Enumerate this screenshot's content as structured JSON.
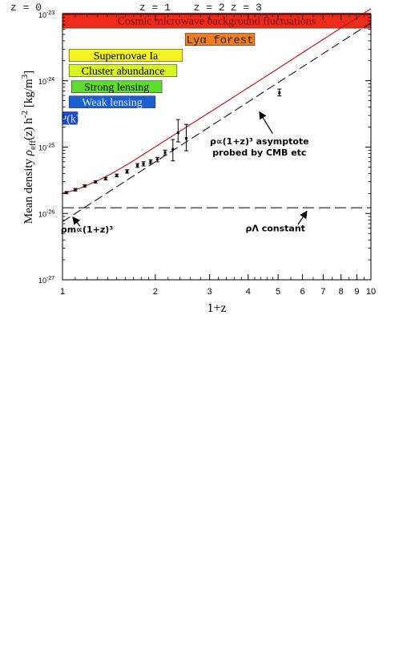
{
  "chart_data": {
    "type": "line",
    "xlabel": "1+z",
    "ylabel_parts": {
      "prefix": "Mean density ",
      "rho": "ρ",
      "sub": "eff",
      "mid": "(z) h",
      "sup": "-2",
      "units": "[kg/m",
      "units_sup": "3",
      "units_end": "]"
    },
    "x_scale": "log",
    "y_scale": "log",
    "xlim": [
      1,
      10
    ],
    "ylim": [
      1e-27,
      1e-23
    ],
    "x_ticks": [
      {
        "value": 1,
        "label": "1"
      },
      {
        "value": 2,
        "label": "2"
      },
      {
        "value": 3,
        "label": "3"
      },
      {
        "value": 4,
        "label": "4"
      },
      {
        "value": 5,
        "label": "5"
      },
      {
        "value": 6,
        "label": "6"
      },
      {
        "value": 7,
        "label": "7"
      },
      {
        "value": 8,
        "label": "8"
      },
      {
        "value": 9,
        "label": "9"
      },
      {
        "value": 10,
        "label": "10"
      }
    ],
    "y_ticks": [
      {
        "value": 1e-27,
        "base": "10",
        "exp": "-27"
      },
      {
        "value": 1e-26,
        "base": "10",
        "exp": "-26"
      },
      {
        "value": 1e-25,
        "base": "10",
        "exp": "-25"
      },
      {
        "value": 1e-24,
        "base": "10",
        "exp": "-24"
      },
      {
        "value": 1e-23,
        "base": "10",
        "exp": "-23"
      }
    ],
    "top_labels": [
      {
        "text": "z = 0",
        "value": 1
      },
      {
        "text": "z = 1",
        "value": 2
      },
      {
        "text": "z = 2",
        "value": 3
      },
      {
        "text": "z = 3",
        "value": 4
      }
    ],
    "series": [
      {
        "style": "solid-red",
        "x": [
          1.0,
          1.05,
          1.1,
          1.15,
          1.2,
          1.3,
          1.4,
          1.5,
          1.7,
          2.0,
          2.3,
          2.7,
          3.2,
          4.0,
          5.0,
          6.5,
          8.0,
          10.0
        ],
        "y": [
          2.03e-26,
          2.12e-26,
          2.26e-26,
          2.44e-26,
          2.65e-26,
          3.12e-26,
          3.71e-26,
          4.42e-26,
          6.25e-26,
          1.01e-25,
          1.53e-25,
          2.45e-25,
          4.05e-25,
          7.86e-25,
          1.53e-24,
          3.37e-24,
          6.26e-24,
          1.22e-23
        ]
      },
      {
        "style": "dashed-black",
        "x": [
          1.0,
          10.0
        ],
        "y": [
          7.5e-27,
          7.5e-24
        ]
      },
      {
        "style": "dashed-black",
        "x": [
          1.0,
          10.0
        ],
        "y": [
          1.22e-26,
          1.22e-26
        ]
      }
    ],
    "error_bars": [
      {
        "x": 1.03,
        "y": 2.06e-26,
        "lo": 1.98e-26,
        "hi": 2.14e-26
      },
      {
        "x": 1.1,
        "y": 2.28e-26,
        "lo": 2.18e-26,
        "hi": 2.38e-26
      },
      {
        "x": 1.18,
        "y": 2.6e-26,
        "lo": 2.5e-26,
        "hi": 2.7e-26
      },
      {
        "x": 1.28,
        "y": 3e-26,
        "lo": 2.88e-26,
        "hi": 3.12e-26
      },
      {
        "x": 1.38,
        "y": 3.35e-26,
        "lo": 3.2e-26,
        "hi": 3.5e-26
      },
      {
        "x": 1.5,
        "y": 3.75e-26,
        "lo": 3.58e-26,
        "hi": 3.92e-26
      },
      {
        "x": 1.62,
        "y": 4.3e-26,
        "lo": 4.05e-26,
        "hi": 4.55e-26
      },
      {
        "x": 1.75,
        "y": 5.3e-26,
        "lo": 4.95e-26,
        "hi": 5.65e-26
      },
      {
        "x": 1.83,
        "y": 5.6e-26,
        "lo": 5.2e-26,
        "hi": 6e-26
      },
      {
        "x": 1.93,
        "y": 6e-26,
        "lo": 5.6e-26,
        "hi": 6.45e-26
      },
      {
        "x": 2.03,
        "y": 6.5e-26,
        "lo": 6e-26,
        "hi": 7e-26
      },
      {
        "x": 2.15,
        "y": 8.3e-26,
        "lo": 7.6e-26,
        "hi": 9e-26
      },
      {
        "x": 2.28,
        "y": 9.3e-26,
        "lo": 6.2e-26,
        "hi": 1.3e-25
      },
      {
        "x": 2.37,
        "y": 1.65e-25,
        "lo": 1.2e-25,
        "hi": 2.6e-25
      },
      {
        "x": 2.52,
        "y": 1.35e-25,
        "lo": 8.8e-26,
        "hi": 2.2e-25
      },
      {
        "x": 5.05,
        "y": 6.6e-25,
        "lo": 5.9e-25,
        "hi": 7.5e-25
      }
    ],
    "bands": [
      {
        "label": "Cosmic microwave background fluctuations",
        "x0": 1.0,
        "x1": 10.0,
        "y0": 6.2e-24,
        "y1": 1.05e-23,
        "color": "#ee2a1b",
        "text_color": "#7a0f0a",
        "font": "serif"
      },
      {
        "label": "Lyα forest",
        "x0": 2.5,
        "x1": 4.2,
        "y0": 3.4e-24,
        "y1": 5.2e-24,
        "color": "#ee7d22",
        "text_color": "#222222",
        "font": "mono"
      },
      {
        "label": "Supernovae Ia",
        "x0": 1.05,
        "x1": 2.45,
        "y0": 1.95e-24,
        "y1": 3e-24,
        "color": "#f4f31f",
        "text_color": "#000000",
        "font": "serif"
      },
      {
        "label": "Cluster abundance",
        "x0": 1.05,
        "x1": 2.35,
        "y0": 1.15e-24,
        "y1": 1.75e-24,
        "color": "#d8f51f",
        "text_color": "#000000",
        "font": "serif"
      },
      {
        "label": "Strong lensing",
        "x0": 1.07,
        "x1": 2.1,
        "y0": 6.6e-25,
        "y1": 1e-24,
        "color": "#5cde2c",
        "text_color": "#000000",
        "font": "serif"
      },
      {
        "label": "Weak lensing",
        "x0": 1.05,
        "x1": 2.0,
        "y0": 3.9e-25,
        "y1": 5.9e-25,
        "color": "#1a5fcf",
        "text_color": "#dfe9ff",
        "font": "serif"
      },
      {
        "label": "P(k)",
        "x0": 1.0,
        "x1": 1.12,
        "y0": 2.2e-25,
        "y1": 3.4e-25,
        "color": "#1a4ccf",
        "text_color": "#dfe9ff",
        "font": "serif"
      }
    ],
    "annotations": [
      {
        "id": "asymptote",
        "lines": [
          "ρ∝(1+z)³ asymptote",
          "probed by CMB etc"
        ],
        "text_x": 4.35,
        "text_y": 1.1e-25,
        "arrow_from": [
          4.8,
          1.6e-25
        ],
        "arrow_to": [
          4.35,
          3.4e-25
        ]
      },
      {
        "id": "matter",
        "lines": [
          "ρm∝(1+z)³"
        ],
        "text_x": 1.2,
        "text_y": 5.2e-27,
        "arrow_from": [
          1.14,
          6.4e-27
        ],
        "arrow_to": [
          1.08,
          8.8e-27
        ]
      },
      {
        "id": "lambda",
        "lines": [
          "ρΛ constant"
        ],
        "text_x": 4.9,
        "text_y": 5.4e-27,
        "arrow_from": [
          5.8,
          6.8e-27
        ],
        "arrow_to": [
          6.2,
          1.08e-26
        ]
      }
    ],
    "colors": {
      "axis": "#000000",
      "model_line": "#c41a1a",
      "dashed": "#000000",
      "points": "#000000",
      "top_labels": "#222222"
    }
  }
}
